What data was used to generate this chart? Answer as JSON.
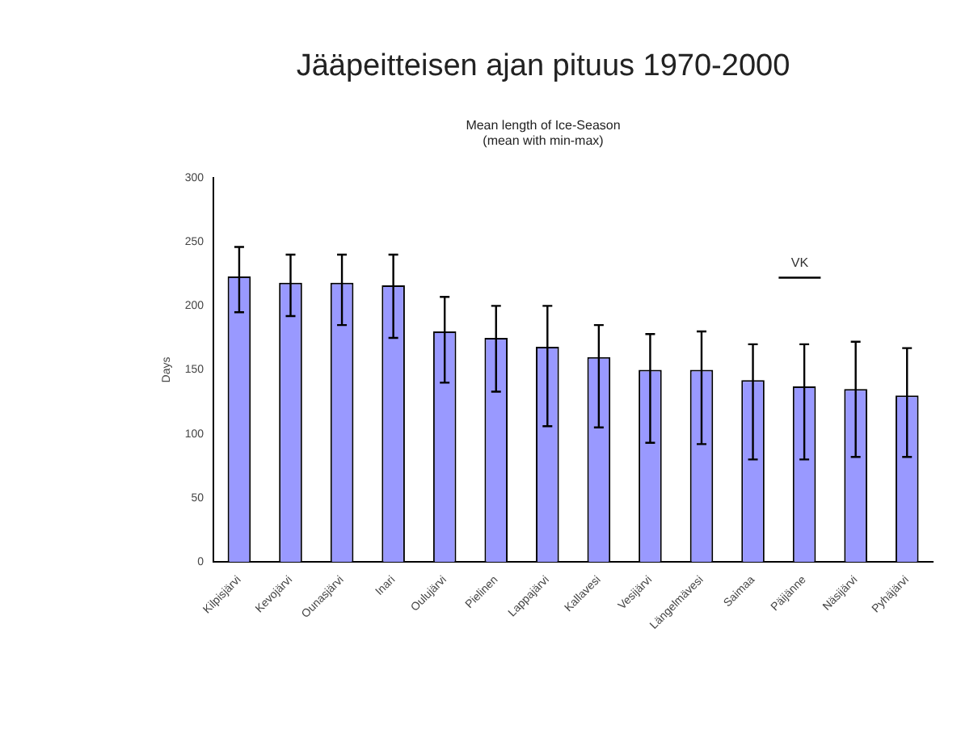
{
  "chart_data": {
    "type": "bar",
    "title": "Jääpeitteisen ajan pituus 1970-2000",
    "subtitle": [
      "Mean length of Ice-Season",
      "(mean with min-max)"
    ],
    "ylabel": "Days",
    "categories": [
      "Kilpisjärvi",
      "Kevojärvi",
      "Ounasjärvi",
      "Inari",
      "Oulujärvi",
      "Pielinen",
      "Lappajärvi",
      "Kallavesi",
      "Vesijärvi",
      "Längelmävesi",
      "Saimaa",
      "Päijänne",
      "Näsijärvi",
      "Pyhäjärvi"
    ],
    "values": [
      223,
      218,
      218,
      216,
      180,
      175,
      168,
      160,
      150,
      150,
      142,
      137,
      135,
      130
    ],
    "errors": [
      [
        195,
        246
      ],
      [
        192,
        240
      ],
      [
        185,
        240
      ],
      [
        175,
        240
      ],
      [
        140,
        207
      ],
      [
        133,
        200
      ],
      [
        106,
        200
      ],
      [
        105,
        185
      ],
      [
        93,
        178
      ],
      [
        92,
        180
      ],
      [
        80,
        170
      ],
      [
        80,
        170
      ],
      [
        82,
        172
      ],
      [
        82,
        167
      ]
    ],
    "color": "#9999ff",
    "ylim": [
      0,
      300
    ],
    "yticks": [
      0,
      50,
      100,
      150,
      200,
      250,
      300
    ],
    "grid": false,
    "legend": false,
    "annotations": [
      "VK"
    ]
  }
}
